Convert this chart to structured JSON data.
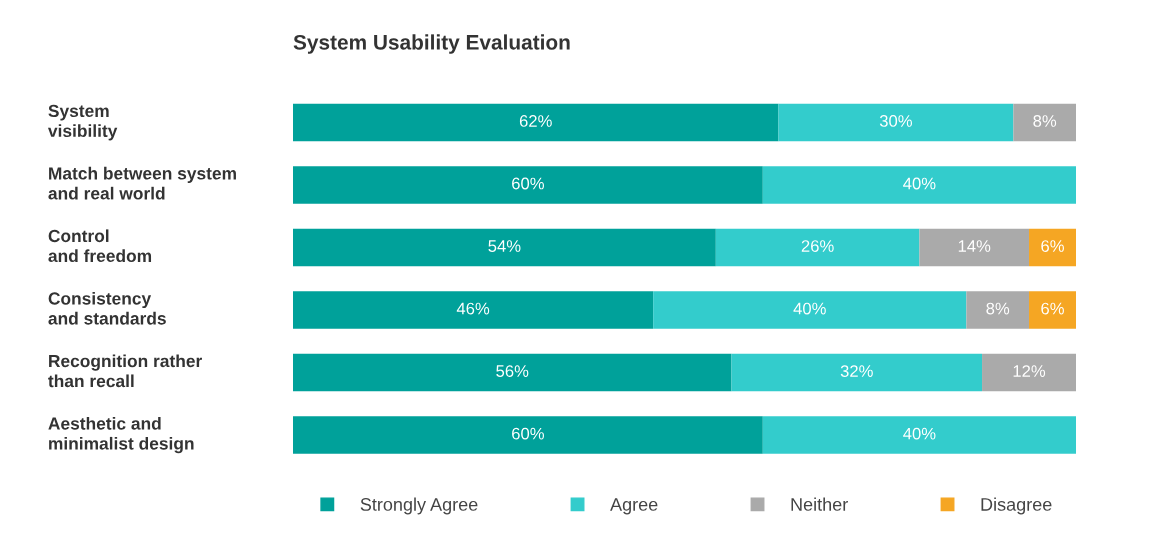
{
  "chart_data": {
    "type": "bar",
    "orientation": "horizontal",
    "stacked": true,
    "title": "System Usability Evaluation",
    "categories": [
      "System\nvisibility",
      "Match between system\nand real world",
      "Control\nand freedom",
      "Consistency\nand standards",
      "Recognition rather\nthan recall",
      "Aesthetic and\nminimalist design"
    ],
    "series": [
      {
        "name": "Strongly Agree",
        "color": "#00a19a",
        "values": [
          62,
          60,
          54,
          46,
          56,
          60
        ],
        "value_labels": [
          "62%",
          "60%",
          "54%",
          "46%",
          "56%",
          "60%"
        ]
      },
      {
        "name": "Agree",
        "color": "#33cccc",
        "values": [
          30,
          40,
          26,
          40,
          32,
          40
        ],
        "value_labels": [
          "30%",
          "40%",
          "26%",
          "40%",
          "32%",
          "40%"
        ]
      },
      {
        "name": "Neither",
        "color": "#aaaaaa",
        "values": [
          8,
          null,
          14,
          8,
          12,
          null
        ],
        "value_labels": [
          "8%",
          null,
          "14%",
          "8%",
          "12%",
          null
        ]
      },
      {
        "name": "Disagree",
        "color": "#f5a623",
        "values": [
          null,
          null,
          6,
          6,
          null,
          null
        ],
        "value_labels": [
          null,
          null,
          "6%",
          "6%",
          null,
          null
        ]
      }
    ],
    "xlim": [
      0,
      100
    ],
    "tick_labels": false,
    "legend": "bottom"
  }
}
